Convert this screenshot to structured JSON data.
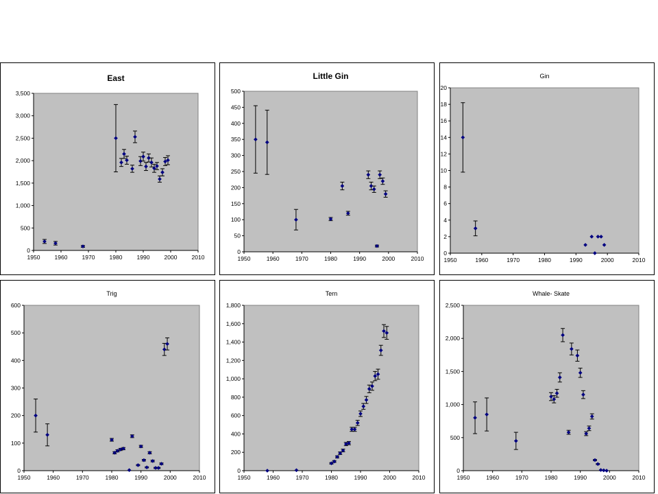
{
  "page": {
    "background": "#ffffff",
    "plot_background": "#c0c0c0",
    "marker_color": "#000080"
  },
  "chart_data": [
    {
      "type": "scatter",
      "title": "East",
      "title_style": "bold",
      "xlim": [
        1950,
        2010
      ],
      "ylim": [
        0,
        3500
      ],
      "xticks": [
        1950,
        1960,
        1970,
        1980,
        1990,
        2000,
        2010
      ],
      "yticks": [
        0,
        500,
        1000,
        1500,
        2000,
        2500,
        3000,
        3500
      ],
      "ytick_labels": [
        "0",
        "500",
        "1,000",
        "1,500",
        "2,000",
        "2,500",
        "3,000",
        "3,500"
      ],
      "grid": false,
      "series": [
        {
          "x": [
            1954,
            1958,
            1968,
            1980,
            1982,
            1983,
            1984,
            1986,
            1987,
            1989,
            1990,
            1991,
            1992,
            1993,
            1994,
            1995,
            1996,
            1997,
            1998,
            1999
          ],
          "y": [
            200,
            160,
            90,
            2500,
            1960,
            2150,
            2010,
            1820,
            2530,
            1990,
            2090,
            1870,
            2060,
            1960,
            1830,
            1880,
            1590,
            1740,
            1980,
            2010
          ],
          "err": [
            45,
            40,
            20,
            750,
            90,
            100,
            90,
            80,
            130,
            100,
            100,
            90,
            90,
            100,
            90,
            80,
            70,
            80,
            90,
            100
          ]
        }
      ]
    },
    {
      "type": "scatter",
      "title": "Little Gin",
      "title_style": "bold",
      "xlim": [
        1950,
        2010
      ],
      "ylim": [
        0,
        500
      ],
      "xticks": [
        1950,
        1960,
        1970,
        1980,
        1990,
        2000,
        2010
      ],
      "yticks": [
        0,
        50,
        100,
        150,
        200,
        250,
        300,
        350,
        400,
        450,
        500
      ],
      "ytick_labels": [
        "0",
        "50",
        "100",
        "150",
        "200",
        "250",
        "300",
        "350",
        "400",
        "450",
        "500"
      ],
      "grid": false,
      "series": [
        {
          "x": [
            1954,
            1958,
            1968,
            1980,
            1984,
            1986,
            1993,
            1994,
            1995,
            1996,
            1997,
            1998,
            1999
          ],
          "y": [
            350,
            341,
            100,
            102,
            205,
            120,
            240,
            205,
            195,
            18,
            240,
            220,
            180
          ],
          "err": [
            105,
            100,
            32,
            5,
            12,
            6,
            12,
            12,
            10,
            3,
            12,
            10,
            10
          ]
        }
      ]
    },
    {
      "type": "scatter",
      "title": "Gin",
      "title_style": "normal",
      "xlim": [
        1950,
        2010
      ],
      "ylim": [
        0,
        20
      ],
      "xticks": [
        1950,
        1960,
        1970,
        1980,
        1990,
        2000,
        2010
      ],
      "yticks": [
        0,
        2,
        4,
        6,
        8,
        10,
        12,
        14,
        16,
        18,
        20
      ],
      "ytick_labels": [
        "0",
        "2",
        "4",
        "6",
        "8",
        "10",
        "12",
        "14",
        "16",
        "18",
        "20"
      ],
      "grid": false,
      "series": [
        {
          "x": [
            1954,
            1958,
            1993,
            1995,
            1996,
            1997,
            1998,
            1999
          ],
          "y": [
            14,
            3,
            1,
            2,
            0,
            2,
            2,
            1
          ],
          "err": [
            4.2,
            0.9,
            0,
            0,
            0,
            0,
            0,
            0
          ]
        }
      ]
    },
    {
      "type": "scatter",
      "title": "Trig",
      "title_style": "normal",
      "xlim": [
        1950,
        2010
      ],
      "ylim": [
        0,
        600
      ],
      "xticks": [
        1950,
        1960,
        1970,
        1980,
        1990,
        2000,
        2010
      ],
      "yticks": [
        0,
        100,
        200,
        300,
        400,
        500,
        600
      ],
      "ytick_labels": [
        "0",
        "100",
        "200",
        "300",
        "400",
        "500",
        "600"
      ],
      "grid": false,
      "series": [
        {
          "x": [
            1954,
            1958,
            1980,
            1981,
            1982,
            1983,
            1984,
            1986,
            1987,
            1989,
            1990,
            1991,
            1992,
            1993,
            1994,
            1995,
            1996,
            1997,
            1998,
            1999
          ],
          "y": [
            200,
            130,
            112,
            65,
            72,
            77,
            80,
            2,
            125,
            20,
            88,
            38,
            12,
            65,
            35,
            10,
            10,
            25,
            440,
            460
          ],
          "err": [
            60,
            40,
            5,
            4,
            4,
            4,
            4,
            0,
            5,
            2,
            4,
            3,
            2,
            4,
            3,
            2,
            2,
            3,
            22,
            22
          ]
        }
      ]
    },
    {
      "type": "scatter",
      "title": "Tern",
      "title_style": "normal",
      "xlim": [
        1950,
        2010
      ],
      "ylim": [
        0,
        1800
      ],
      "xticks": [
        1950,
        1960,
        1970,
        1980,
        1990,
        2000,
        2010
      ],
      "yticks": [
        0,
        200,
        400,
        600,
        800,
        1000,
        1200,
        1400,
        1600,
        1800
      ],
      "ytick_labels": [
        "0",
        "200",
        "400",
        "600",
        "800",
        "1,000",
        "1,200",
        "1,400",
        "1,600",
        "1,800"
      ],
      "grid": false,
      "series": [
        {
          "x": [
            1958,
            1968,
            1980,
            1981,
            1982,
            1983,
            1984,
            1985,
            1986,
            1987,
            1988,
            1989,
            1990,
            1991,
            1992,
            1993,
            1994,
            1995,
            1996,
            1997,
            1998,
            1999
          ],
          "y": [
            0,
            5,
            80,
            100,
            150,
            190,
            220,
            290,
            300,
            450,
            450,
            520,
            620,
            700,
            770,
            890,
            920,
            1030,
            1050,
            1310,
            1520,
            1500
          ],
          "err": [
            0,
            0,
            8,
            10,
            12,
            14,
            15,
            18,
            18,
            22,
            22,
            28,
            30,
            32,
            38,
            42,
            45,
            50,
            55,
            55,
            70,
            70
          ]
        }
      ]
    },
    {
      "type": "scatter",
      "title": "Whale- Skate",
      "title_style": "normal",
      "xlim": [
        1950,
        2010
      ],
      "ylim": [
        0,
        2500
      ],
      "xticks": [
        1950,
        1960,
        1970,
        1980,
        1990,
        2000,
        2010
      ],
      "yticks": [
        0,
        500,
        1000,
        1500,
        2000,
        2500
      ],
      "ytick_labels": [
        "0",
        "500",
        "1,000",
        "1,500",
        "2,000",
        "2,500"
      ],
      "grid": false,
      "series": [
        {
          "x": [
            1954,
            1958,
            1968,
            1980,
            1981,
            1982,
            1983,
            1984,
            1986,
            1987,
            1989,
            1990,
            1991,
            1992,
            1993,
            1994,
            1995,
            1996,
            1997,
            1998,
            1999
          ],
          "y": [
            800,
            850,
            450,
            1120,
            1080,
            1170,
            1410,
            2050,
            580,
            1840,
            1740,
            1480,
            1150,
            560,
            640,
            820,
            160,
            100,
            10,
            5,
            0
          ],
          "err": [
            240,
            250,
            130,
            60,
            55,
            60,
            70,
            100,
            30,
            90,
            85,
            70,
            60,
            30,
            35,
            40,
            10,
            8,
            0,
            0,
            0
          ]
        }
      ]
    }
  ]
}
